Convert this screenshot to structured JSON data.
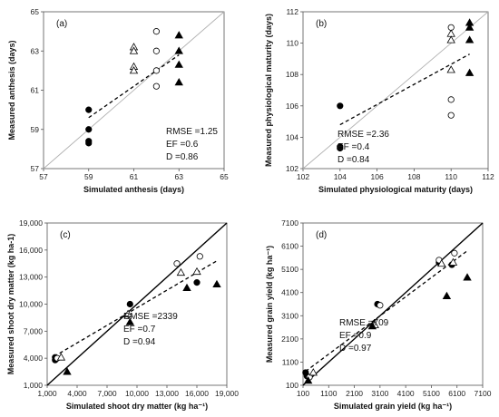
{
  "chart_data": [
    {
      "type": "scatter",
      "panel_label": "(a)",
      "xlabel": "Simulated  anthesis (days)",
      "ylabel": "Measured anthesis (days)",
      "xlim": [
        57,
        65
      ],
      "ylim": [
        57,
        65
      ],
      "xticks": [
        57,
        59,
        61,
        63,
        65
      ],
      "yticks": [
        57,
        59,
        61,
        63,
        65
      ],
      "xtick_labels": [
        "57",
        "59",
        "61",
        "63",
        "65"
      ],
      "ytick_labels": [
        "57",
        "59",
        "61",
        "63",
        "65"
      ],
      "one_to_one_style": "gray",
      "fit_line": [
        [
          59,
          59.6
        ],
        [
          63,
          62.8
        ]
      ],
      "stats": [
        "RMSE =1.25",
        "EF =0.6",
        "D =0.86"
      ],
      "series": [
        {
          "marker": "filled-circle",
          "points": [
            [
              59,
              60
            ],
            [
              59,
              59
            ],
            [
              59,
              58.4
            ],
            [
              59,
              58.3
            ]
          ]
        },
        {
          "marker": "open-triangle",
          "points": [
            [
              61,
              63.2
            ],
            [
              61,
              63.0
            ],
            [
              61,
              62.2
            ],
            [
              61,
              62.0
            ]
          ]
        },
        {
          "marker": "open-circle",
          "points": [
            [
              62,
              64
            ],
            [
              62,
              63
            ],
            [
              62,
              62
            ],
            [
              62,
              61.2
            ]
          ]
        },
        {
          "marker": "filled-triangle",
          "points": [
            [
              63,
              63.8
            ],
            [
              63,
              63.0
            ],
            [
              63,
              62.3
            ],
            [
              63,
              61.4
            ]
          ]
        }
      ]
    },
    {
      "type": "scatter",
      "panel_label": "(b)",
      "xlabel": "Simulated  physiological maturity (days)",
      "ylabel": "Measured physiological maturity (days)",
      "xlim": [
        102,
        112
      ],
      "ylim": [
        102,
        112
      ],
      "xticks": [
        102,
        104,
        106,
        108,
        110,
        112
      ],
      "yticks": [
        102,
        104,
        106,
        108,
        110,
        112
      ],
      "xtick_labels": [
        "102",
        "104",
        "106",
        "108",
        "110",
        "112"
      ],
      "ytick_labels": [
        "102",
        "104",
        "106",
        "108",
        "110",
        "112"
      ],
      "one_to_one_style": "gray",
      "fit_line": [
        [
          104,
          104.8
        ],
        [
          111,
          109.3
        ]
      ],
      "stats": [
        "RMSE =2.36",
        "EF =0.4",
        "D =0.84"
      ],
      "series": [
        {
          "marker": "filled-circle",
          "points": [
            [
              104,
              106.0
            ],
            [
              104,
              103.4
            ],
            [
              104,
              103.3
            ]
          ]
        },
        {
          "marker": "open-circle",
          "points": [
            [
              110,
              111.0
            ],
            [
              110,
              106.4
            ],
            [
              110,
              105.4
            ]
          ]
        },
        {
          "marker": "open-triangle",
          "points": [
            [
              110,
              110.6
            ],
            [
              110,
              110.2
            ],
            [
              110,
              108.3
            ]
          ]
        },
        {
          "marker": "filled-triangle",
          "points": [
            [
              111,
              111.3
            ],
            [
              111,
              111.0
            ],
            [
              111,
              110.2
            ],
            [
              111,
              108.1
            ]
          ]
        }
      ]
    },
    {
      "type": "scatter",
      "panel_label": "(c)",
      "xlabel": "Simulated shoot dry matter (kg ha⁻¹)",
      "ylabel": "Measured shoot dry matter (kg ha-1)",
      "xlim": [
        1000,
        19000
      ],
      "ylim": [
        1000,
        19000
      ],
      "xticks": [
        1000,
        4000,
        7000,
        10000,
        13000,
        16000,
        19000
      ],
      "yticks": [
        1000,
        4000,
        7000,
        10000,
        13000,
        16000,
        19000
      ],
      "xtick_labels": [
        "1,000",
        "4,000",
        "7,000",
        "10,000",
        "13,000",
        "16,000",
        "19,000"
      ],
      "ytick_labels": [
        "1,000",
        "4,000",
        "7,000",
        "10,000",
        "13,000",
        "16,000",
        "19,000"
      ],
      "one_to_one_style": "black",
      "fit_line": [
        [
          1700,
          4200
        ],
        [
          18000,
          14800
        ]
      ],
      "stats": [
        "RMSE =2339",
        "EF =0.7",
        "D =0.94"
      ],
      "series": [
        {
          "marker": "filled-circle",
          "points": [
            [
              1800,
              4100
            ],
            [
              1800,
              3800
            ],
            [
              9300,
              10000
            ],
            [
              16000,
              12400
            ]
          ]
        },
        {
          "marker": "open-circle",
          "points": [
            [
              2000,
              4000
            ],
            [
              14000,
              14500
            ],
            [
              16300,
              15300
            ],
            [
              9000,
              8700
            ]
          ]
        },
        {
          "marker": "open-triangle",
          "points": [
            [
              2400,
              4100
            ],
            [
              9100,
              8900
            ],
            [
              14400,
              13500
            ],
            [
              16000,
              13600
            ]
          ]
        },
        {
          "marker": "filled-triangle",
          "points": [
            [
              3000,
              2500
            ],
            [
              9300,
              8000
            ],
            [
              15000,
              11800
            ],
            [
              18000,
              12200
            ]
          ]
        }
      ]
    },
    {
      "type": "scatter",
      "panel_label": "(d)",
      "xlabel": "Simulated grain yield (kg ha⁻¹)",
      "ylabel": "Measured grain yield (kg ha⁻¹)",
      "xlim": [
        100,
        7100
      ],
      "ylim": [
        100,
        7100
      ],
      "xticks": [
        100,
        1100,
        2100,
        3100,
        4100,
        5100,
        6100,
        7100
      ],
      "yticks": [
        100,
        1100,
        2100,
        3100,
        4100,
        5100,
        6100,
        7100
      ],
      "xtick_labels": [
        "100",
        "1100",
        "2100",
        "3100",
        "4100",
        "5100",
        "6100",
        "7100"
      ],
      "ytick_labels": [
        "100",
        "1100",
        "2100",
        "3100",
        "4100",
        "5100",
        "6100",
        "7100"
      ],
      "one_to_one_style": "black",
      "fit_line": [
        [
          200,
          700
        ],
        [
          6500,
          5900
        ]
      ],
      "stats": [
        "RMSE =709",
        "EF =0.9",
        "D =0.97"
      ],
      "series": [
        {
          "marker": "filled-circle",
          "points": [
            [
              200,
              650
            ],
            [
              250,
              500
            ],
            [
              3000,
              3600
            ],
            [
              5400,
              5400
            ],
            [
              5900,
              5300
            ]
          ]
        },
        {
          "marker": "open-circle",
          "points": [
            [
              350,
              450
            ],
            [
              3100,
              3550
            ],
            [
              5400,
              5500
            ],
            [
              6000,
              5800
            ]
          ]
        },
        {
          "marker": "open-triangle",
          "points": [
            [
              500,
              650
            ],
            [
              2900,
              2700
            ],
            [
              5500,
              5350
            ],
            [
              5950,
              5400
            ]
          ]
        },
        {
          "marker": "filled-triangle",
          "points": [
            [
              300,
              300
            ],
            [
              2800,
              2650
            ],
            [
              5700,
              3950
            ],
            [
              6500,
              4750
            ]
          ]
        }
      ]
    }
  ]
}
